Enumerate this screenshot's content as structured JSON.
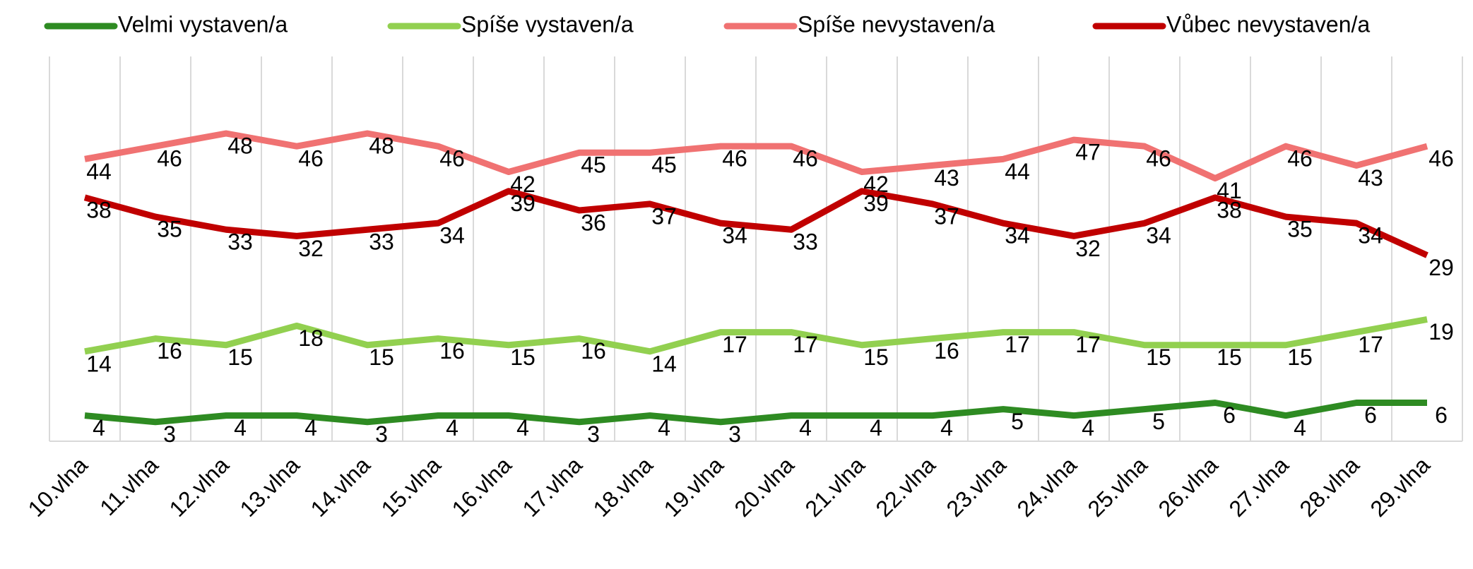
{
  "chart_data": {
    "type": "line",
    "categories": [
      "10.vlna",
      "11.vlna",
      "12.vlna",
      "13.vlna",
      "14.vlna",
      "15.vlna",
      "16.vlna",
      "17.vlna",
      "18.vlna",
      "19.vlna",
      "20.vlna",
      "21.vlna",
      "22.vlna",
      "23.vlna",
      "24.vlna",
      "25.vlna",
      "26.vlna",
      "27.vlna",
      "28.vlna",
      "29.vlna"
    ],
    "series": [
      {
        "name": "Velmi vystaven/a",
        "color": "#2e8b22",
        "values": [
          4,
          3,
          4,
          4,
          3,
          4,
          4,
          3,
          4,
          3,
          4,
          4,
          4,
          5,
          4,
          5,
          6,
          4,
          6,
          6
        ]
      },
      {
        "name": "Spíše vystaven/a",
        "color": "#92d050",
        "values": [
          14,
          16,
          15,
          18,
          15,
          16,
          15,
          16,
          14,
          17,
          17,
          15,
          16,
          17,
          17,
          15,
          15,
          15,
          17,
          19
        ]
      },
      {
        "name": "Spíše nevystaven/a",
        "color": "#f07272",
        "values": [
          44,
          46,
          48,
          46,
          48,
          46,
          42,
          45,
          45,
          46,
          46,
          42,
          43,
          44,
          47,
          46,
          41,
          46,
          43,
          46
        ]
      },
      {
        "name": "Vůbec nevystaven/a",
        "color": "#c00000",
        "values": [
          38,
          35,
          33,
          32,
          33,
          34,
          39,
          36,
          37,
          34,
          33,
          39,
          37,
          34,
          32,
          34,
          38,
          35,
          34,
          29
        ]
      }
    ],
    "ylim": [
      0,
      60
    ],
    "grid": true,
    "legend": "top"
  }
}
